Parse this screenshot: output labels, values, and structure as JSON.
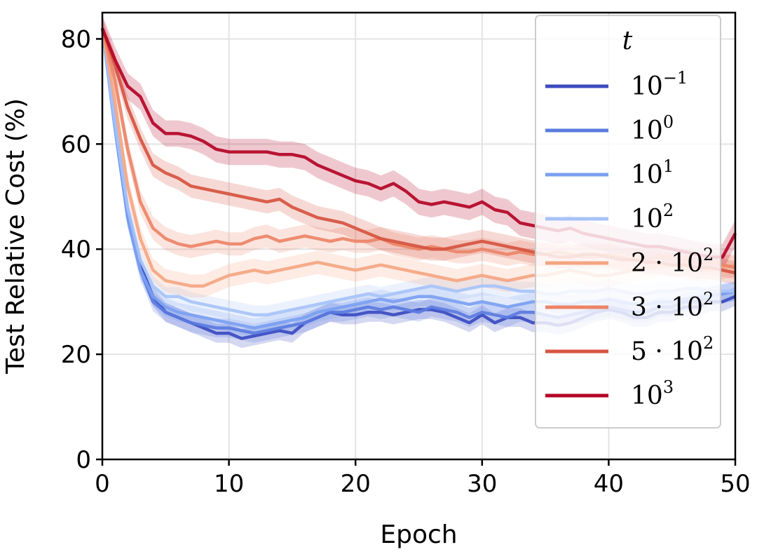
{
  "chart_data": {
    "type": "line",
    "xlabel": "Epoch",
    "ylabel": "Test Relative Cost (%)",
    "xlim": [
      0,
      50
    ],
    "ylim": [
      0,
      85
    ],
    "xticks": [
      "0",
      "10",
      "20",
      "30",
      "40",
      "50"
    ],
    "yticks": [
      "0",
      "20",
      "40",
      "60",
      "80"
    ],
    "grid": true,
    "legend": {
      "title": "t",
      "placement": "upper-right"
    },
    "x": [
      0,
      1,
      2,
      3,
      4,
      5,
      6,
      7,
      8,
      9,
      10,
      11,
      12,
      13,
      14,
      15,
      16,
      17,
      18,
      19,
      20,
      21,
      22,
      23,
      24,
      25,
      26,
      27,
      28,
      29,
      30,
      31,
      32,
      33,
      34,
      35,
      36,
      37,
      38,
      39,
      40,
      41,
      42,
      43,
      44,
      45,
      46,
      47,
      48,
      49,
      50
    ],
    "series": [
      {
        "name": "10^-1",
        "base": "10",
        "exp": "−1",
        "color": "#3b4cc0",
        "values": [
          82,
          64,
          47,
          37,
          31,
          28,
          27,
          26,
          25,
          24,
          24,
          23,
          23.5,
          24,
          24.5,
          24,
          26,
          27,
          28,
          27.5,
          27.5,
          28,
          28,
          27.5,
          28,
          28.5,
          28.5,
          28,
          27,
          26,
          27.5,
          26,
          27,
          27,
          26,
          26,
          25.5,
          26,
          27,
          28,
          28.5,
          28,
          27,
          27,
          28,
          28,
          29,
          29,
          30,
          30,
          31
        ],
        "band": 1.8
      },
      {
        "name": "10^0",
        "base": "10",
        "exp": "0",
        "color": "#5b7ce0",
        "values": [
          82,
          63,
          46,
          36,
          30,
          28,
          27,
          26,
          25.5,
          25,
          25,
          24.5,
          24,
          24.5,
          25,
          25.5,
          26,
          27,
          28,
          28,
          28.5,
          29,
          28.5,
          29,
          28.5,
          28,
          29,
          28.5,
          28,
          27,
          28,
          27.5,
          27,
          28,
          28,
          27.5,
          27,
          27.5,
          28,
          28.5,
          29,
          28.5,
          28,
          28,
          29,
          29,
          30,
          30,
          31,
          31.5,
          32
        ],
        "band": 1.8
      },
      {
        "name": "10^1",
        "base": "10",
        "exp": "1",
        "color": "#7ba0f2",
        "values": [
          82,
          63,
          46,
          36,
          31,
          29,
          28,
          27.5,
          27,
          26.5,
          26,
          25.5,
          25,
          25.5,
          26,
          26.5,
          27,
          28,
          28.5,
          29,
          29.5,
          30,
          30.5,
          30,
          30.5,
          31,
          31,
          30.5,
          30,
          29.5,
          30,
          29.5,
          29,
          29.5,
          30,
          30,
          29.5,
          29.5,
          30,
          30,
          30.5,
          30,
          29.5,
          29.5,
          30,
          30,
          30.5,
          31,
          31,
          31.5,
          32
        ],
        "band": 1.8
      },
      {
        "name": "10^2",
        "base": "10",
        "exp": "2",
        "color": "#a7c3f8",
        "values": [
          82,
          64,
          48,
          38,
          33,
          31,
          31,
          30,
          29.5,
          29,
          28.5,
          28,
          27.5,
          27.5,
          28,
          28.5,
          29,
          29.5,
          30,
          30.5,
          31,
          31.5,
          31,
          31.5,
          32,
          32.5,
          33,
          32.5,
          32,
          32.5,
          33,
          33,
          32.5,
          32,
          32,
          31.5,
          31.5,
          32,
          32,
          32,
          32.5,
          32,
          31.5,
          31.5,
          32,
          32,
          32.5,
          32.5,
          32,
          32,
          32
        ],
        "band": 1.8
      },
      {
        "name": "2·10^2",
        "base": "2 · 10",
        "exp": "2",
        "color": "#f4a582",
        "values": [
          82,
          68,
          52,
          42,
          36,
          34,
          33.5,
          33,
          33,
          34,
          35,
          35.5,
          36,
          35.5,
          36,
          36.5,
          37,
          37.5,
          37,
          36.5,
          36,
          36.5,
          37,
          36.5,
          36,
          35.5,
          35,
          34.5,
          34,
          34.5,
          35,
          34.5,
          34,
          34.5,
          35,
          35,
          35.5,
          36,
          35.5,
          35,
          35,
          35.5,
          36,
          36.5,
          37,
          37,
          36.5,
          36,
          36,
          36.5,
          37
        ],
        "band": 2.2
      },
      {
        "name": "3·10^2",
        "base": "3 · 10",
        "exp": "2",
        "color": "#ec8467",
        "values": [
          82,
          72,
          59,
          49,
          44,
          42,
          41,
          40.5,
          41,
          41.5,
          41,
          41,
          42,
          42.5,
          41.5,
          42,
          42.5,
          42,
          41.5,
          42,
          41.5,
          41.5,
          42,
          41,
          40.5,
          40,
          40.5,
          40,
          39.5,
          39.5,
          40,
          39.5,
          39,
          39.5,
          39,
          39,
          39.5,
          39,
          38.5,
          38.5,
          39,
          38.5,
          38,
          38,
          38.5,
          38.5,
          38,
          37.5,
          37.5,
          37,
          36.5
        ],
        "band": 2.2
      },
      {
        "name": "5·10^2",
        "base": "5 · 10",
        "exp": "2",
        "color": "#d65440",
        "values": [
          82,
          75,
          67,
          61,
          56,
          54.5,
          53.5,
          52,
          51.5,
          51,
          50.5,
          50,
          49.5,
          49,
          49.5,
          48,
          47,
          46,
          45.5,
          45,
          44,
          43,
          42,
          41.5,
          41,
          40.5,
          40,
          40,
          40.5,
          41,
          41.5,
          41,
          40.5,
          40,
          39.5,
          39,
          38.5,
          38.5,
          39,
          39,
          38.5,
          38,
          38,
          37.5,
          37.5,
          37,
          37,
          36.5,
          36.5,
          36,
          35.5
        ],
        "band": 2.2
      },
      {
        "name": "10^3",
        "base": "10",
        "exp": "3",
        "color": "#b40426",
        "values": [
          82,
          76,
          71,
          69,
          64,
          62,
          62,
          61.5,
          60.5,
          59,
          58.5,
          58.5,
          58.5,
          58.5,
          58,
          58,
          57.5,
          56,
          55,
          54,
          53,
          52.5,
          51.5,
          52.5,
          51,
          49,
          48.5,
          49,
          48.5,
          48,
          49,
          47.5,
          47,
          45,
          44.5,
          44,
          43.5,
          44,
          43,
          42.5,
          42,
          41.5,
          41,
          40.5,
          40.5,
          40,
          39.5,
          39,
          38.5,
          38.5,
          43
        ],
        "band": 2.5
      }
    ]
  }
}
